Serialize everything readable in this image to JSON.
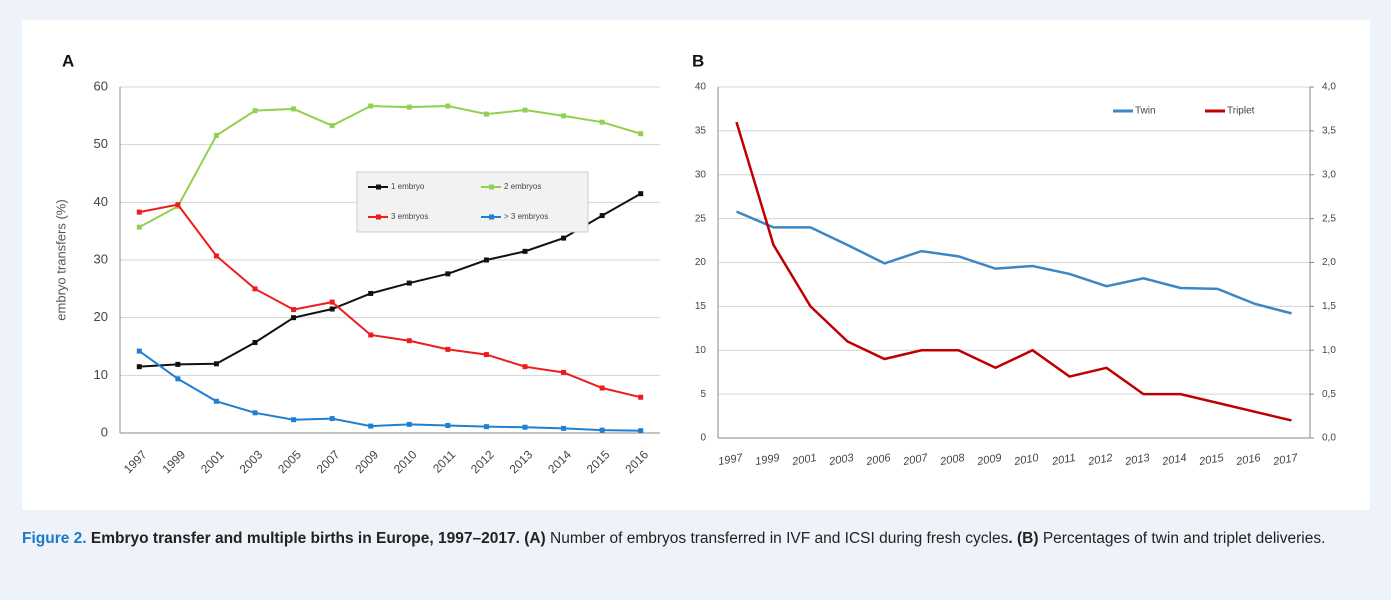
{
  "chart_data": [
    {
      "type": "line",
      "title": "A",
      "ylabel": "embryo transfers (%)",
      "categories": [
        "1997",
        "1999",
        "2001",
        "2003",
        "2005",
        "2007",
        "2009",
        "2010",
        "2011",
        "2012",
        "2013",
        "2014",
        "2015",
        "2016"
      ],
      "ylim": [
        0,
        60
      ],
      "yticks": [
        0,
        10,
        20,
        30,
        40,
        50,
        60
      ],
      "grid": true,
      "markers": true,
      "series": [
        {
          "name": "1 embryo",
          "color": "#111111",
          "values": [
            11.5,
            11.9,
            12,
            15.7,
            20,
            21.5,
            24.2,
            26,
            27.6,
            30,
            31.5,
            33.8,
            37.7,
            41.5
          ]
        },
        {
          "name": "2 embryos",
          "color": "#92d050",
          "values": [
            35.7,
            39.3,
            51.6,
            55.9,
            56.2,
            53.3,
            56.7,
            56.5,
            56.7,
            55.3,
            56,
            55,
            53.9,
            51.9
          ]
        },
        {
          "name": "3 embryos",
          "color": "#ee1c1c",
          "values": [
            38.3,
            39.6,
            30.7,
            25,
            21.4,
            22.7,
            17,
            16,
            14.5,
            13.6,
            11.5,
            10.5,
            7.8,
            6.2
          ]
        },
        {
          "name": "> 3 embryos",
          "color": "#1f7fd0",
          "values": [
            14.2,
            9.4,
            5.5,
            3.5,
            2.3,
            2.5,
            1.2,
            1.5,
            1.3,
            1.1,
            1,
            0.8,
            0.5,
            0.4
          ]
        }
      ]
    },
    {
      "type": "line",
      "title": "B",
      "categories": [
        "1997",
        "1999",
        "2001",
        "2003",
        "2006",
        "2007",
        "2008",
        "2009",
        "2010",
        "2011",
        "2012",
        "2013",
        "2014",
        "2015",
        "2016",
        "2017"
      ],
      "ylim": [
        0,
        40
      ],
      "yticks": [
        0,
        5,
        10,
        15,
        20,
        25,
        30,
        35,
        40
      ],
      "y2lim": [
        0,
        4
      ],
      "y2ticks": [
        {
          "value": 0,
          "label": "0,0"
        },
        {
          "value": 0.5,
          "label": "0,5"
        },
        {
          "value": 1,
          "label": "1,0"
        },
        {
          "value": 1.5,
          "label": "1,5"
        },
        {
          "value": 2,
          "label": "2,0"
        },
        {
          "value": 2.5,
          "label": "2,5"
        },
        {
          "value": 3,
          "label": "3,0"
        },
        {
          "value": 3.5,
          "label": "3,5"
        },
        {
          "value": 4,
          "label": "4,0"
        }
      ],
      "grid": true,
      "markers": false,
      "series": [
        {
          "name": "Twin",
          "color": "#3a87c8",
          "values": [
            25.8,
            24,
            24,
            22,
            19.9,
            21.3,
            20.7,
            19.3,
            19.6,
            18.7,
            17.3,
            18.2,
            17.1,
            17,
            15.3,
            14.2
          ]
        },
        {
          "name": "Triplet",
          "color": "#c00000",
          "axis": "y2",
          "values": [
            3.6,
            2.2,
            1.5,
            1.1,
            0.9,
            1.0,
            1.0,
            0.8,
            1.0,
            0.7,
            0.8,
            0.5,
            0.5,
            0.4,
            0.3,
            0.2
          ]
        }
      ]
    }
  ],
  "caption": {
    "label": "Figure 2.",
    "title": "Embryo transfer and multiple births in Europe, 1997–2017.",
    "a_label": "(A)",
    "a_text": "Number of embryos transferred in IVF and ICSI during fresh cycles",
    "b_label": "(B)",
    "b_text": "Percentages of twin and triplet deliveries."
  }
}
